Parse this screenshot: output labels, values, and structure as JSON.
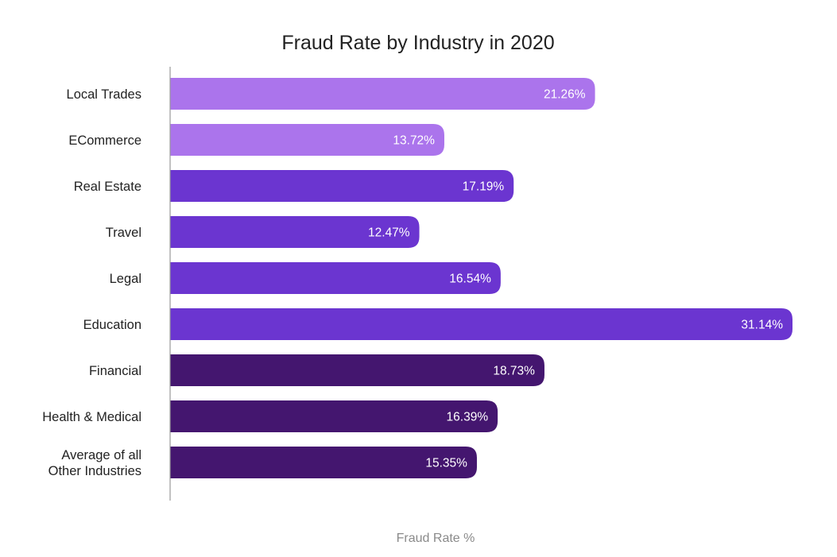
{
  "chart_data": {
    "type": "bar",
    "orientation": "horizontal",
    "title": "Fraud Rate by Industry in 2020",
    "xlabel": "Fraud Rate %",
    "ylabel": "",
    "xlim": [
      0,
      31.14
    ],
    "grid": false,
    "legend": "none",
    "categories": [
      [
        "Local Trades"
      ],
      [
        "ECommerce"
      ],
      [
        "Real Estate"
      ],
      [
        "Travel"
      ],
      [
        "Legal"
      ],
      [
        "Education"
      ],
      [
        "Financial"
      ],
      [
        "Health & Medical"
      ],
      [
        "Average of all",
        "Other Industries"
      ]
    ],
    "values": [
      21.26,
      13.72,
      17.19,
      12.47,
      16.54,
      31.14,
      18.73,
      16.39,
      15.35
    ],
    "value_labels": [
      "21.26%",
      "13.72%",
      "17.19%",
      "12.47%",
      "16.54%",
      "31.14%",
      "18.73%",
      "16.39%",
      "15.35%"
    ],
    "bar_colors": [
      "#ab74ec",
      "#ab74ec",
      "#6b35d0",
      "#6b35d0",
      "#6b35d0",
      "#6b35d0",
      "#44166f",
      "#44166f",
      "#44166f"
    ],
    "axis_color": "#999999"
  }
}
